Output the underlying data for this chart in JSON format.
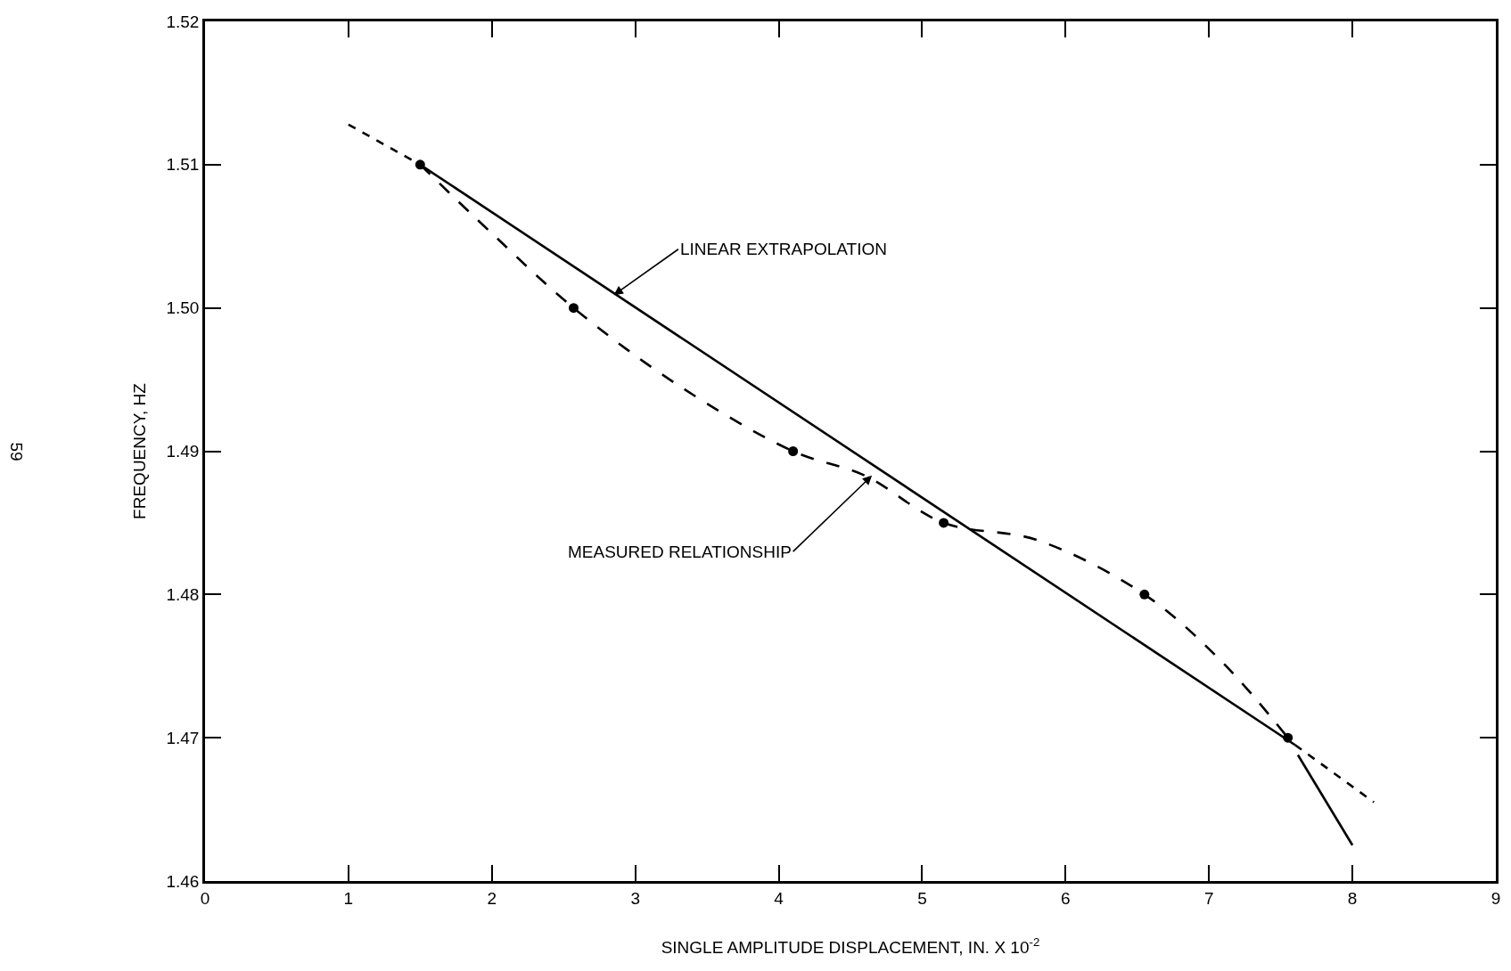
{
  "chart_data": {
    "type": "line",
    "xlabel": "SINGLE AMPLITUDE DISPLACEMENT, IN. X 10$^{-2}$",
    "ylabel": "FREQUENCY, HZ",
    "xlim": [
      0,
      9
    ],
    "xticks": [
      0,
      1,
      2,
      3,
      4,
      5,
      6,
      7,
      8,
      9
    ],
    "ylim": [
      1.46,
      1.52
    ],
    "yticks": [
      {
        "value": 1.46,
        "label": "1.46"
      },
      {
        "value": 1.47,
        "label": "1.47"
      },
      {
        "value": 1.48,
        "label": "1.48"
      },
      {
        "value": 1.49,
        "label": "1.49"
      },
      {
        "value": 1.5,
        "label": "1.50"
      },
      {
        "value": 1.51,
        "label": "1.51"
      },
      {
        "value": 1.52,
        "label": "1.52"
      }
    ],
    "series": [
      {
        "color": "#000000",
        "line_style": "solid",
        "marker": "none",
        "x": [
          1.5,
          7.6
        ],
        "values": [
          1.51,
          1.4695
        ]
      },
      {
        "color": "#000000",
        "line_style": "dashed",
        "marker": "none",
        "x": [
          1.0,
          1.5
        ],
        "values": [
          1.5128,
          1.51
        ]
      },
      {
        "color": "#000000",
        "line_style": "dashed",
        "marker": "none",
        "x": [
          7.6,
          8.15
        ],
        "values": [
          1.4695,
          1.4655
        ]
      },
      {
        "color": "#000000",
        "line_style": "longdash",
        "marker": "none",
        "x": [
          1.5,
          2.0,
          2.57,
          3.3,
          4.1,
          4.6,
          5.15,
          5.8,
          6.55,
          7.1,
          7.55
        ],
        "values": [
          1.51,
          1.5052,
          1.5,
          1.4946,
          1.49,
          1.4883,
          1.485,
          1.4838,
          1.48,
          1.4752,
          1.47
        ]
      },
      {
        "color": "#000000",
        "line_style": "solid",
        "marker": "none",
        "x": [
          7.62,
          8.0
        ],
        "values": [
          1.4688,
          1.4625
        ]
      },
      {
        "type": "scatter",
        "color": "#000000",
        "marker": "circle",
        "x": [
          1.5,
          2.57,
          4.1,
          5.15,
          6.55,
          7.55
        ],
        "values": [
          1.51,
          1.5,
          1.49,
          1.485,
          1.48,
          1.47
        ]
      }
    ],
    "annotations": [
      {
        "text": "LINEAR EXTRAPOLATION",
        "x": 2.85,
        "y": 1.5009
      },
      {
        "text": "MEASURED RELATIONSHIP",
        "x": 4.65,
        "y": 1.4883
      },
      "59"
    ]
  }
}
